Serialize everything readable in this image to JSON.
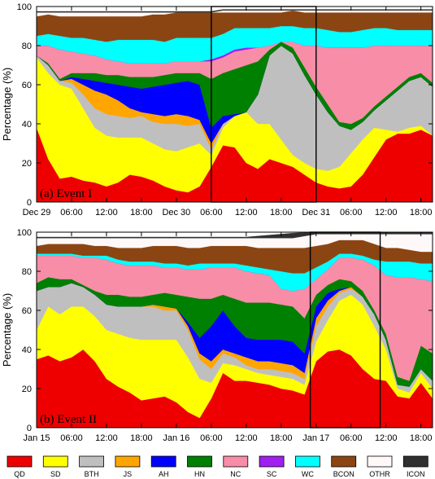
{
  "chart_data": [
    {
      "type": "area",
      "stacked": true,
      "panel_label": "(a) Event I",
      "ylabel": "Percentage (%)",
      "ylim": [
        0,
        100
      ],
      "yticks": [
        0,
        20,
        40,
        60,
        80,
        100
      ],
      "x_unit": "hours after Dec 29 00:00",
      "xlim": [
        0,
        68
      ],
      "xticks": [
        {
          "x": 0,
          "label": "Dec 29"
        },
        {
          "x": 6,
          "label": "06:00"
        },
        {
          "x": 12,
          "label": "12:00"
        },
        {
          "x": 18,
          "label": "18:00"
        },
        {
          "x": 24,
          "label": "Dec 30"
        },
        {
          "x": 30,
          "label": "06:00"
        },
        {
          "x": 36,
          "label": "12:00"
        },
        {
          "x": 42,
          "label": "18:00"
        },
        {
          "x": 48,
          "label": "Dec 31"
        },
        {
          "x": 54,
          "label": "06:00"
        },
        {
          "x": 60,
          "label": "12:00"
        },
        {
          "x": 66,
          "label": "18:00"
        }
      ],
      "highlight_box": [
        30,
        48
      ],
      "x": [
        0,
        2,
        4,
        6,
        8,
        10,
        12,
        14,
        16,
        18,
        20,
        22,
        24,
        26,
        28,
        30,
        32,
        34,
        36,
        38,
        40,
        42,
        44,
        46,
        48,
        50,
        52,
        54,
        56,
        58,
        60,
        62,
        64,
        66,
        68
      ],
      "cumulative": [
        [
          38,
          22,
          12,
          13,
          11,
          10,
          8,
          10,
          14,
          13,
          11,
          8,
          6,
          5,
          8,
          18,
          29,
          28,
          20,
          17,
          22,
          20,
          18,
          14,
          10,
          8,
          7,
          8,
          14,
          23,
          32,
          35,
          35,
          37,
          34
        ],
        [
          74,
          66,
          60,
          58,
          48,
          38,
          34,
          33,
          33,
          33,
          30,
          27,
          26,
          28,
          30,
          24,
          38,
          44,
          46,
          40,
          40,
          32,
          24,
          20,
          17,
          16,
          18,
          25,
          32,
          38,
          37,
          36,
          38,
          39,
          34
        ],
        [
          75,
          70,
          62,
          61,
          55,
          48,
          45,
          44,
          43,
          44,
          41,
          40,
          40,
          39,
          40,
          27,
          40,
          44,
          46,
          55,
          75,
          80,
          76,
          65,
          55,
          46,
          39,
          37,
          41,
          47,
          52,
          57,
          62,
          64,
          59
        ],
        [
          75,
          70,
          62,
          63,
          60,
          57,
          55,
          52,
          48,
          46,
          45,
          44,
          45,
          44,
          42,
          30,
          40,
          44,
          46,
          55,
          75,
          80,
          76,
          65,
          55,
          46,
          39,
          37,
          41,
          47,
          52,
          57,
          62,
          64,
          59
        ],
        [
          75,
          70,
          62,
          64,
          63,
          62,
          61,
          60,
          59,
          58,
          59,
          60,
          61,
          62,
          60,
          38,
          44,
          45,
          46,
          55,
          75,
          80,
          76,
          65,
          55,
          46,
          39,
          37,
          41,
          47,
          52,
          57,
          62,
          64,
          59
        ],
        [
          75,
          71,
          63,
          66,
          66,
          66,
          65,
          65,
          64,
          64,
          64,
          65,
          66,
          66,
          66,
          63,
          66,
          68,
          70,
          72,
          78,
          82,
          79,
          69,
          59,
          50,
          41,
          40,
          43,
          49,
          54,
          59,
          64,
          66,
          61
        ],
        [
          80,
          80,
          78,
          77,
          76,
          75,
          73,
          72,
          71,
          71,
          71,
          71,
          72,
          72,
          72,
          72,
          74,
          77,
          78,
          79,
          80,
          82,
          82,
          80,
          80,
          79,
          79,
          79,
          79,
          80,
          80,
          80,
          80,
          80,
          80
        ],
        [
          80,
          80,
          78,
          77,
          76,
          75,
          73,
          72,
          71,
          71,
          71,
          71,
          72,
          72,
          72,
          73,
          75,
          78,
          79,
          79,
          80,
          82,
          82,
          80,
          80,
          79,
          79,
          79,
          79,
          80,
          80,
          80,
          80,
          80,
          80
        ],
        [
          85,
          86,
          85,
          84,
          84,
          83,
          82,
          83,
          83,
          83,
          83,
          82,
          84,
          84,
          84,
          84,
          86,
          89,
          89,
          89,
          89,
          90,
          90,
          89,
          89,
          88,
          87,
          87,
          88,
          89,
          89,
          88,
          88,
          88,
          88
        ],
        [
          95,
          96,
          95,
          95,
          95,
          95,
          95,
          95,
          95,
          95,
          96,
          96,
          97,
          97,
          97,
          97,
          97,
          97,
          97,
          97,
          97,
          97,
          98,
          97,
          97,
          97,
          97,
          97,
          97,
          97,
          97,
          97,
          97,
          97,
          97
        ],
        [
          97,
          97,
          97,
          97,
          97,
          97,
          97,
          97,
          97,
          97,
          97,
          97,
          97,
          97,
          97,
          97,
          98,
          98,
          98,
          98,
          98,
          98,
          98,
          98,
          98,
          98,
          98,
          98,
          98,
          98,
          98,
          98,
          98,
          98,
          98
        ],
        [
          97.5,
          97.5,
          97.5,
          97.5,
          97.5,
          97.5,
          97.5,
          97.5,
          97.5,
          97.5,
          97.5,
          97.5,
          97.5,
          97.5,
          97.5,
          97.5,
          98.5,
          98.5,
          98.5,
          98.5,
          98.5,
          98.5,
          98.5,
          98.5,
          98.5,
          98.5,
          98.5,
          98.5,
          98.5,
          98.5,
          98.5,
          98.5,
          98.5,
          98.5,
          98.5
        ]
      ]
    },
    {
      "type": "area",
      "stacked": true,
      "panel_label": "(b) Event II",
      "ylabel": "Percentage (%)",
      "ylim": [
        0,
        100
      ],
      "yticks": [
        0,
        20,
        40,
        60,
        80,
        100
      ],
      "x_unit": "hours after Jan 15 00:00",
      "xlim": [
        0,
        68
      ],
      "xticks": [
        {
          "x": 0,
          "label": "Jan 15"
        },
        {
          "x": 6,
          "label": "06:00"
        },
        {
          "x": 12,
          "label": "12:00"
        },
        {
          "x": 18,
          "label": "18:00"
        },
        {
          "x": 24,
          "label": "Jan 16"
        },
        {
          "x": 30,
          "label": "06:00"
        },
        {
          "x": 36,
          "label": "12:00"
        },
        {
          "x": 42,
          "label": "18:00"
        },
        {
          "x": 48,
          "label": "Jan 17"
        },
        {
          "x": 54,
          "label": "06:00"
        },
        {
          "x": 60,
          "label": "12:00"
        },
        {
          "x": 66,
          "label": "18:00"
        }
      ],
      "highlight_box": [
        47,
        59
      ],
      "x": [
        0,
        2,
        4,
        6,
        8,
        10,
        12,
        14,
        16,
        18,
        20,
        22,
        24,
        26,
        28,
        30,
        32,
        34,
        36,
        38,
        40,
        42,
        44,
        46,
        48,
        50,
        52,
        54,
        56,
        58,
        60,
        62,
        64,
        66,
        68
      ],
      "cumulative": [
        [
          35,
          37,
          34,
          36,
          40,
          34,
          25,
          21,
          18,
          14,
          15,
          16,
          13,
          8,
          5,
          15,
          28,
          24,
          24,
          23,
          22,
          20,
          19,
          17,
          34,
          39,
          40,
          37,
          30,
          25,
          24,
          16,
          15,
          23,
          15
        ],
        [
          50,
          62,
          58,
          62,
          62,
          57,
          50,
          48,
          46,
          45,
          45,
          45,
          45,
          36,
          25,
          23,
          33,
          32,
          30,
          28,
          27,
          26,
          25,
          22,
          44,
          55,
          65,
          68,
          63,
          52,
          40,
          20,
          18,
          28,
          20
        ],
        [
          70,
          72,
          72,
          74,
          72,
          68,
          63,
          62,
          62,
          62,
          62,
          60,
          60,
          50,
          35,
          30,
          38,
          36,
          32,
          30,
          30,
          29,
          28,
          25,
          52,
          62,
          69,
          71,
          67,
          58,
          45,
          22,
          21,
          30,
          24
        ],
        [
          70,
          72,
          72,
          74,
          72,
          68,
          63,
          62,
          62,
          62,
          63,
          62,
          61,
          52,
          38,
          34,
          40,
          38,
          36,
          34,
          34,
          33,
          32,
          28,
          56,
          65,
          70,
          72,
          67,
          58,
          45,
          22,
          21,
          30,
          24
        ],
        [
          70,
          72,
          72,
          74,
          72,
          68,
          63,
          62,
          62,
          62,
          63,
          62,
          61,
          54,
          46,
          52,
          60,
          52,
          46,
          45,
          45,
          45,
          44,
          38,
          62,
          69,
          71,
          72,
          67,
          58,
          45,
          22,
          21,
          30,
          24
        ],
        [
          74,
          77,
          76,
          76,
          73,
          70,
          68,
          68,
          67,
          67,
          68,
          69,
          68,
          67,
          66,
          66,
          68,
          66,
          64,
          64,
          64,
          63,
          62,
          56,
          68,
          73,
          76,
          75,
          70,
          60,
          48,
          26,
          24,
          42,
          38
        ],
        [
          88,
          88,
          88,
          88,
          87,
          87,
          86,
          84,
          83,
          83,
          83,
          82,
          82,
          81,
          81,
          82,
          82,
          82,
          80,
          79,
          78,
          76,
          74,
          74,
          76,
          81,
          87,
          87,
          86,
          83,
          78,
          77,
          77,
          76,
          75
        ],
        [
          88,
          88,
          88,
          88,
          87,
          87,
          86,
          84,
          83,
          83,
          83,
          82,
          82,
          81,
          81,
          82,
          82,
          82,
          80,
          79,
          78,
          71,
          70,
          71,
          76,
          81,
          87,
          87,
          86,
          83,
          78,
          77,
          77,
          76,
          75
        ],
        [
          89,
          89,
          89,
          89,
          88,
          88,
          88,
          86,
          85,
          85,
          85,
          84,
          84,
          83,
          84,
          84,
          84,
          84,
          83,
          82,
          81,
          80,
          79,
          79,
          82,
          85,
          89,
          89,
          88,
          86,
          85,
          85,
          85,
          84,
          84
        ],
        [
          93,
          94,
          94,
          94,
          94,
          93,
          93,
          92,
          92,
          92,
          93,
          93,
          93,
          92,
          92,
          93,
          93,
          93,
          93,
          92,
          92,
          92,
          92,
          92,
          93,
          94,
          96,
          96,
          96,
          94,
          92,
          92,
          91,
          90,
          90
        ],
        [
          97,
          97,
          97,
          97,
          97,
          97,
          97,
          97,
          97,
          97,
          97,
          97,
          97,
          97,
          97,
          97,
          97,
          97,
          97,
          97,
          97,
          97,
          97,
          98,
          99,
          99,
          99,
          99,
          99,
          99,
          99,
          99,
          99,
          99,
          99
        ],
        [
          97.5,
          97.5,
          97.5,
          97.5,
          97.5,
          97.5,
          97.5,
          97.5,
          97.5,
          97.5,
          97.5,
          97.5,
          97.5,
          97.5,
          97.5,
          97.5,
          97.5,
          97.5,
          97.5,
          98,
          98.5,
          99,
          99.5,
          99.8,
          100,
          100,
          100,
          100,
          100,
          100,
          100,
          100,
          100,
          100,
          100
        ]
      ]
    }
  ],
  "legend": [
    {
      "name": "QD",
      "color": "#ee0000"
    },
    {
      "name": "SD",
      "color": "#ffff00"
    },
    {
      "name": "BTH",
      "color": "#bfbfbf"
    },
    {
      "name": "JS",
      "color": "#ffa500"
    },
    {
      "name": "AH",
      "color": "#0000ff"
    },
    {
      "name": "HN",
      "color": "#008000"
    },
    {
      "name": "NC",
      "color": "#f78da7"
    },
    {
      "name": "SC",
      "color": "#a020f0"
    },
    {
      "name": "WC",
      "color": "#00ffff"
    },
    {
      "name": "BCON",
      "color": "#8b4513"
    },
    {
      "name": "OTHR",
      "color": "#fff8f8"
    },
    {
      "name": "ICON",
      "color": "#303030"
    }
  ]
}
